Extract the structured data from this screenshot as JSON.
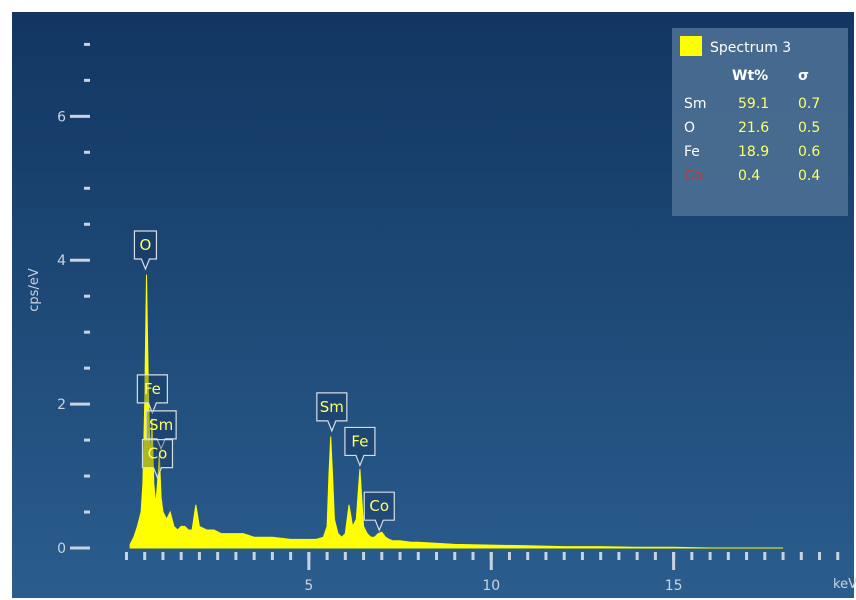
{
  "chart_data": {
    "type": "area",
    "xlabel": "keV",
    "ylabel": "cps/eV",
    "xlim": [
      -1,
      20
    ],
    "ylim": [
      0,
      7.2
    ],
    "x_ticks": [
      5,
      10,
      15
    ],
    "y_ticks": [
      0,
      2,
      4,
      6
    ],
    "grid": false,
    "series": [
      {
        "name": "Spectrum 3",
        "color": "#ffff00",
        "x": [
          0.1,
          0.2,
          0.3,
          0.4,
          0.45,
          0.5,
          0.55,
          0.6,
          0.65,
          0.7,
          0.75,
          0.8,
          0.85,
          0.9,
          0.95,
          1.0,
          1.1,
          1.2,
          1.3,
          1.4,
          1.5,
          1.6,
          1.7,
          1.8,
          1.9,
          2.0,
          2.2,
          2.4,
          2.6,
          2.8,
          3.0,
          3.2,
          3.5,
          3.8,
          4.0,
          4.5,
          5.0,
          5.2,
          5.4,
          5.5,
          5.55,
          5.6,
          5.65,
          5.7,
          5.8,
          5.9,
          6.0,
          6.1,
          6.2,
          6.3,
          6.4,
          6.45,
          6.5,
          6.55,
          6.6,
          6.7,
          6.8,
          6.9,
          7.0,
          7.1,
          7.2,
          7.3,
          7.5,
          7.8,
          8.0,
          9.0,
          10.0,
          11.0,
          12.0,
          13.0,
          14.0,
          15.0,
          16.0,
          17.0,
          18.0
        ],
        "y": [
          0.05,
          0.15,
          0.3,
          0.5,
          0.9,
          2.0,
          3.8,
          2.2,
          1.2,
          1.8,
          0.9,
          0.6,
          0.9,
          1.3,
          0.7,
          0.5,
          0.4,
          0.5,
          0.3,
          0.25,
          0.3,
          0.3,
          0.25,
          0.25,
          0.6,
          0.3,
          0.25,
          0.25,
          0.2,
          0.2,
          0.2,
          0.2,
          0.15,
          0.15,
          0.15,
          0.12,
          0.12,
          0.12,
          0.15,
          0.3,
          1.0,
          1.55,
          1.0,
          0.4,
          0.2,
          0.15,
          0.2,
          0.6,
          0.3,
          0.4,
          1.1,
          0.7,
          0.3,
          0.25,
          0.2,
          0.15,
          0.15,
          0.2,
          0.22,
          0.15,
          0.12,
          0.1,
          0.1,
          0.08,
          0.08,
          0.05,
          0.04,
          0.03,
          0.02,
          0.02,
          0.01,
          0.01,
          0.0,
          0.0,
          0.0
        ]
      }
    ],
    "peak_labels": [
      {
        "label": "O",
        "x": 0.52,
        "y": 3.85
      },
      {
        "label": "Fe",
        "x": 0.71,
        "y": 1.85
      },
      {
        "label": "Sm",
        "x": 0.95,
        "y": 1.35
      },
      {
        "label": "Co",
        "x": 0.85,
        "y": 0.95
      },
      {
        "label": "Sm",
        "x": 5.63,
        "y": 1.6
      },
      {
        "label": "Fe",
        "x": 6.4,
        "y": 1.12
      },
      {
        "label": "Co",
        "x": 6.93,
        "y": 0.22
      }
    ],
    "legend": {
      "placement": "top-right",
      "title": "Spectrum 3",
      "columns": [
        "Wt%",
        "σ"
      ],
      "rows": [
        {
          "element": "Sm",
          "wt": "59.1",
          "sigma": "0.7",
          "color": "#ffffff"
        },
        {
          "element": "O",
          "wt": "21.6",
          "sigma": "0.5",
          "color": "#ffffff"
        },
        {
          "element": "Fe",
          "wt": "18.9",
          "sigma": "0.6",
          "color": "#ffffff"
        },
        {
          "element": "Co",
          "wt": "0.4",
          "sigma": "0.4",
          "color": "#c0392b"
        }
      ]
    }
  },
  "colors": {
    "background_top": "#123661",
    "background_bottom": "#2a5d8e",
    "spectrum": "#ffff00",
    "axis": "#c9d3de",
    "legend_bg": "#4b6f92",
    "value_text": "#ffff66"
  }
}
